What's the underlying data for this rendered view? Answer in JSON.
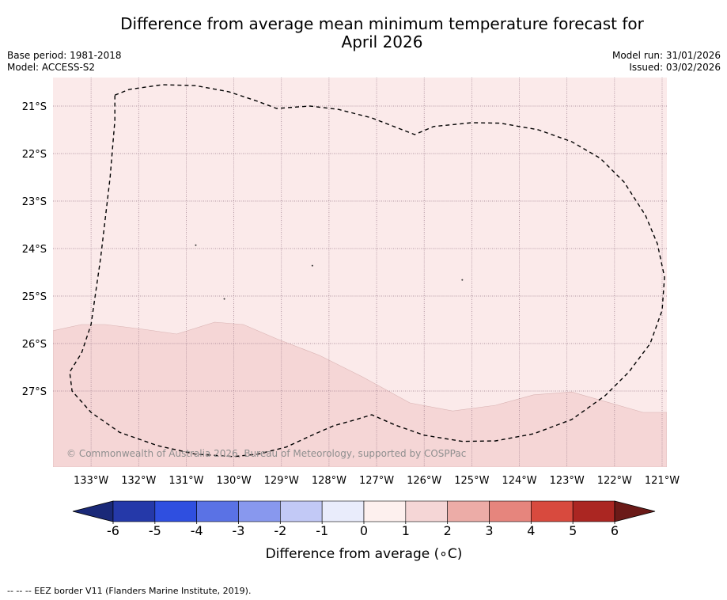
{
  "title_line1": "Difference from average mean minimum temperature forecast for",
  "title_line2": "April 2026",
  "base_period": "Base period: 1981-2018",
  "model": "Model: ACCESS-S2",
  "model_run": "Model run: 31/01/2026",
  "issued": "Issued: 03/02/2026",
  "credit": "© Commonwealth of Australia 2026, Bureau of Meteorology, supported by COSPPac",
  "footer": "--  --  -- EEZ border V11 (Flanders Marine Institute, 2019).",
  "map": {
    "lon_range": [
      -133.8,
      -120.9
    ],
    "lat_range": [
      -28.6,
      -20.4
    ],
    "lat_ticks": [
      {
        "value": -21,
        "label": "21°S"
      },
      {
        "value": -22,
        "label": "22°S"
      },
      {
        "value": -23,
        "label": "23°S"
      },
      {
        "value": -24,
        "label": "24°S"
      },
      {
        "value": -25,
        "label": "25°S"
      },
      {
        "value": -26,
        "label": "26°S"
      },
      {
        "value": -27,
        "label": "27°S"
      }
    ],
    "lon_ticks": [
      {
        "value": -133,
        "label": "133°W"
      },
      {
        "value": -132,
        "label": "132°W"
      },
      {
        "value": -131,
        "label": "131°W"
      },
      {
        "value": -130,
        "label": "130°W"
      },
      {
        "value": -129,
        "label": "129°W"
      },
      {
        "value": -128,
        "label": "128°W"
      },
      {
        "value": -127,
        "label": "127°W"
      },
      {
        "value": -126,
        "label": "126°W"
      },
      {
        "value": -125,
        "label": "125°W"
      },
      {
        "value": -124,
        "label": "124°W"
      },
      {
        "value": -123,
        "label": "123°W"
      },
      {
        "value": -122,
        "label": "122°W"
      },
      {
        "value": -121,
        "label": "121°W"
      }
    ],
    "regions": [
      {
        "name": "anomaly-0-to-1",
        "range": "0 to 1",
        "color": "#fbeaea",
        "points": [
          [
            -133.8,
            -20.4
          ],
          [
            -120.9,
            -20.4
          ],
          [
            -120.9,
            -28.6
          ],
          [
            -133.8,
            -28.6
          ]
        ]
      },
      {
        "name": "anomaly-1-to-2",
        "range": "1 to 2",
        "color": "#f5d6d6",
        "points": [
          [
            -133.8,
            -25.73
          ],
          [
            -133.2,
            -25.6
          ],
          [
            -132.7,
            -25.6
          ],
          [
            -131.9,
            -25.7
          ],
          [
            -131.2,
            -25.8
          ],
          [
            -130.4,
            -25.55
          ],
          [
            -129.8,
            -25.6
          ],
          [
            -129.1,
            -25.9
          ],
          [
            -128.2,
            -26.25
          ],
          [
            -127.3,
            -26.7
          ],
          [
            -126.3,
            -27.25
          ],
          [
            -125.4,
            -27.42
          ],
          [
            -124.5,
            -27.3
          ],
          [
            -123.7,
            -27.08
          ],
          [
            -122.9,
            -27.02
          ],
          [
            -122.2,
            -27.22
          ],
          [
            -121.4,
            -27.45
          ],
          [
            -120.9,
            -27.45
          ],
          [
            -120.9,
            -28.6
          ],
          [
            -133.8,
            -28.6
          ]
        ]
      }
    ],
    "eez_border": [
      [
        -132.5,
        -20.77
      ],
      [
        -132.2,
        -20.65
      ],
      [
        -131.5,
        -20.55
      ],
      [
        -130.8,
        -20.57
      ],
      [
        -130.1,
        -20.7
      ],
      [
        -129.5,
        -20.9
      ],
      [
        -129.1,
        -21.05
      ],
      [
        -128.4,
        -21.0
      ],
      [
        -127.8,
        -21.07
      ],
      [
        -127.1,
        -21.25
      ],
      [
        -126.2,
        -21.6
      ],
      [
        -125.8,
        -21.43
      ],
      [
        -125.0,
        -21.35
      ],
      [
        -124.4,
        -21.36
      ],
      [
        -123.6,
        -21.5
      ],
      [
        -122.9,
        -21.75
      ],
      [
        -122.3,
        -22.1
      ],
      [
        -121.8,
        -22.6
      ],
      [
        -121.35,
        -23.3
      ],
      [
        -121.1,
        -23.9
      ],
      [
        -120.95,
        -24.6
      ],
      [
        -121.0,
        -25.3
      ],
      [
        -121.25,
        -26.0
      ],
      [
        -121.7,
        -26.6
      ],
      [
        -122.2,
        -27.1
      ],
      [
        -122.9,
        -27.6
      ],
      [
        -123.7,
        -27.9
      ],
      [
        -124.5,
        -28.05
      ],
      [
        -125.2,
        -28.06
      ],
      [
        -126.0,
        -27.93
      ],
      [
        -126.6,
        -27.72
      ],
      [
        -127.1,
        -27.5
      ],
      [
        -127.5,
        -27.62
      ],
      [
        -127.9,
        -27.73
      ],
      [
        -128.4,
        -27.95
      ],
      [
        -128.9,
        -28.18
      ],
      [
        -129.5,
        -28.33
      ],
      [
        -130.0,
        -28.38
      ],
      [
        -130.8,
        -28.33
      ],
      [
        -131.6,
        -28.15
      ],
      [
        -132.4,
        -27.87
      ],
      [
        -133.0,
        -27.45
      ],
      [
        -133.4,
        -27.0
      ],
      [
        -133.45,
        -26.6
      ],
      [
        -133.2,
        -26.2
      ],
      [
        -133.0,
        -25.6
      ],
      [
        -132.8,
        -24.2
      ],
      [
        -132.6,
        -22.5
      ],
      [
        -132.5,
        -21.3
      ],
      [
        -132.5,
        -20.77
      ]
    ],
    "small_marks": [
      [
        -130.8,
        -23.93
      ],
      [
        -128.35,
        -24.36
      ],
      [
        -125.2,
        -24.66
      ],
      [
        -130.2,
        -25.06
      ]
    ]
  },
  "colorbar": {
    "title": "Difference from average (∘C)",
    "tick_labels": [
      "-6",
      "-5",
      "-4",
      "-3",
      "-2",
      "-1",
      "0",
      "1",
      "2",
      "3",
      "4",
      "5",
      "6"
    ],
    "colors": [
      "#2539a9",
      "#2f4fe0",
      "#5a72e5",
      "#8898ee",
      "#c2c9f6",
      "#e9ecfb",
      "#fdf0ee",
      "#f5d6d6",
      "#ecaca7",
      "#e6857d",
      "#d84a3e",
      "#ab2622"
    ],
    "under_color": "#1a2978",
    "over_color": "#6b1a18"
  }
}
